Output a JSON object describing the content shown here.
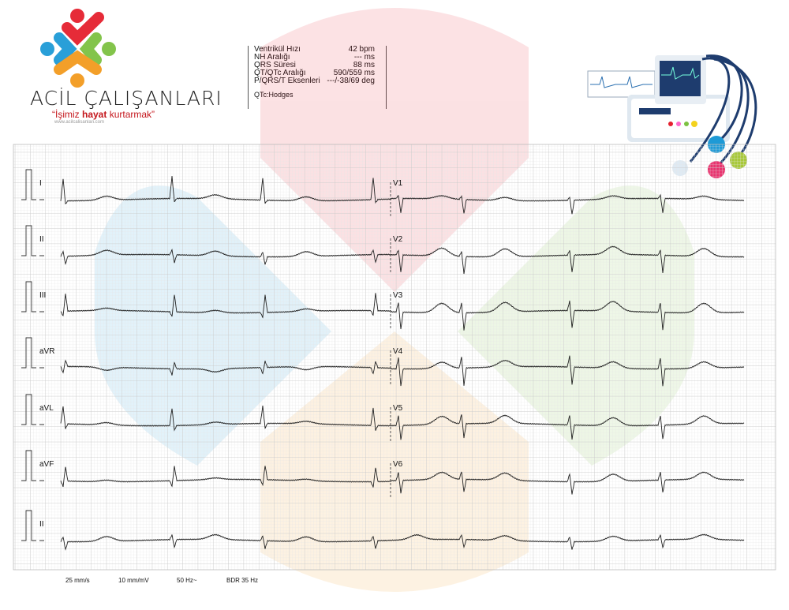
{
  "brand": {
    "name": "ACİL ÇALIŞANLARI",
    "slogan_open": "“",
    "slogan_1": "İşimiz ",
    "slogan_2": "hayat",
    "slogan_3": " kurtarmak",
    "slogan_close": "”",
    "url": "www.acilcalisanlari.com"
  },
  "measurements": {
    "rows": [
      {
        "label": "Ventrikül Hızı",
        "value": "42 bpm"
      },
      {
        "label": "NH Aralığı",
        "value": "--- ms"
      },
      {
        "label": "QRS Süresi",
        "value": "88 ms"
      },
      {
        "label": "QT/QTc Aralığı",
        "value": "590/559 ms"
      },
      {
        "label": "P/QRS/T Eksenleri",
        "value": "---/-38/69 deg"
      }
    ],
    "formula": "QTc:Hodges"
  },
  "leads": {
    "left": [
      "I",
      "II",
      "III",
      "aVR",
      "aVL",
      "aVF",
      "II"
    ],
    "right": [
      "V1",
      "V2",
      "V3",
      "V4",
      "V5",
      "V6"
    ]
  },
  "settings": {
    "speed": "25 mm/s",
    "gain": "10 mm/mV",
    "filter": "50 Hz~",
    "bdr": "BDR 35 Hz"
  },
  "colors": {
    "grid_minor": "#e6e6e6",
    "grid_major": "#c8c8c8",
    "trace": "#222222",
    "red": "#e5202e",
    "blue": "#1e9ad6",
    "green": "#7dc142",
    "orange": "#f39a1e"
  }
}
